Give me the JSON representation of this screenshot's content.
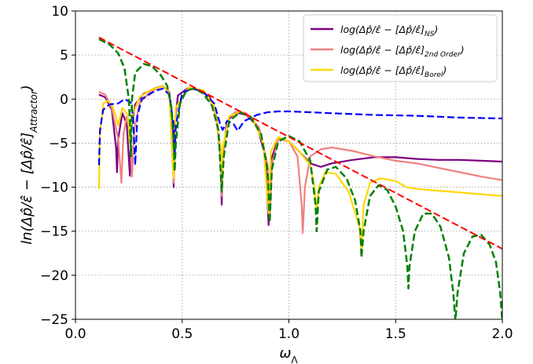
{
  "chart_data": {
    "type": "line",
    "xlabel": "ω_Λ",
    "ylabel": "ln(Δp̂/ε̂ − [Δp̂/ε̂]_Attractor)",
    "xlim": [
      0.0,
      2.0
    ],
    "ylim": [
      -25,
      10
    ],
    "xticks": [
      0.0,
      0.5,
      1.0,
      1.5,
      2.0
    ],
    "xtick_labels": [
      "0.0",
      "0.5",
      "1.0",
      "1.5",
      "2.0"
    ],
    "yticks": [
      10,
      5,
      0,
      -5,
      -10,
      -15,
      -20,
      -25
    ],
    "ytick_labels": [
      "10",
      "5",
      "0",
      "−5",
      "−10",
      "−15",
      "−20",
      "−25"
    ],
    "grid": true,
    "legend_position": "top-right",
    "legend": [
      {
        "label": "log(Δp̂/ε̂ − [Δp̂/ε̂]",
        "sub": "NS",
        "close": ")",
        "color": "#7b0080"
      },
      {
        "label": "log(Δp̂/ε̂ − [Δp̂/ε̂]",
        "sub": "2nd Order",
        "close": ")",
        "color": "#f08080"
      },
      {
        "label": "log(Δp̂/ε̂ − [Δp̂/ε̂]",
        "sub": "Borel",
        "close": ")",
        "color": "#ffd700"
      }
    ],
    "series": [
      {
        "key": "ns",
        "color": "#7b0080",
        "style": "solid",
        "width": 2.2,
        "points": [
          [
            0.11,
            0.5
          ],
          [
            0.14,
            0.2
          ],
          [
            0.17,
            -1.2
          ],
          [
            0.19,
            -5.5
          ],
          [
            0.195,
            -8.3
          ],
          [
            0.2,
            -4.5
          ],
          [
            0.22,
            -1.6
          ],
          [
            0.24,
            -2.8
          ],
          [
            0.255,
            -8.7
          ],
          [
            0.26,
            -3.5
          ],
          [
            0.28,
            -0.6
          ],
          [
            0.32,
            0.6
          ],
          [
            0.37,
            1.2
          ],
          [
            0.41,
            1.5
          ],
          [
            0.44,
            0.8
          ],
          [
            0.455,
            -3.0
          ],
          [
            0.46,
            -10.0
          ],
          [
            0.465,
            -3.0
          ],
          [
            0.48,
            0.4
          ],
          [
            0.53,
            1.3
          ],
          [
            0.58,
            1.0
          ],
          [
            0.63,
            0.2
          ],
          [
            0.66,
            -2.0
          ],
          [
            0.68,
            -6.5
          ],
          [
            0.685,
            -12.0
          ],
          [
            0.69,
            -6.5
          ],
          [
            0.71,
            -2.5
          ],
          [
            0.75,
            -1.5
          ],
          [
            0.8,
            -1.8
          ],
          [
            0.85,
            -3.0
          ],
          [
            0.89,
            -6.5
          ],
          [
            0.905,
            -14.3
          ],
          [
            0.915,
            -7.0
          ],
          [
            0.95,
            -4.5
          ],
          [
            1.0,
            -4.8
          ],
          [
            1.05,
            -6.0
          ],
          [
            1.1,
            -7.3
          ],
          [
            1.15,
            -7.7
          ],
          [
            1.2,
            -7.3
          ],
          [
            1.3,
            -6.9
          ],
          [
            1.4,
            -6.6
          ],
          [
            1.5,
            -6.6
          ],
          [
            1.6,
            -6.8
          ],
          [
            1.7,
            -6.9
          ],
          [
            1.8,
            -6.9
          ],
          [
            1.9,
            -7.0
          ],
          [
            2.0,
            -7.1
          ]
        ]
      },
      {
        "key": "second",
        "color": "#f08080",
        "style": "solid",
        "width": 2.2,
        "points": [
          [
            0.11,
            0.8
          ],
          [
            0.14,
            0.5
          ],
          [
            0.17,
            -1.0
          ],
          [
            0.2,
            -4.5
          ],
          [
            0.215,
            -9.5
          ],
          [
            0.225,
            -4.0
          ],
          [
            0.24,
            -2.0
          ],
          [
            0.255,
            -3.8
          ],
          [
            0.265,
            -8.8
          ],
          [
            0.275,
            -3.5
          ],
          [
            0.3,
            -0.5
          ],
          [
            0.35,
            0.8
          ],
          [
            0.41,
            1.5
          ],
          [
            0.44,
            0.8
          ],
          [
            0.46,
            -9.5
          ],
          [
            0.47,
            -1.0
          ],
          [
            0.53,
            1.3
          ],
          [
            0.6,
            0.8
          ],
          [
            0.65,
            -0.8
          ],
          [
            0.68,
            -6.0
          ],
          [
            0.685,
            -11.0
          ],
          [
            0.69,
            -6.0
          ],
          [
            0.72,
            -2.0
          ],
          [
            0.76,
            -1.4
          ],
          [
            0.8,
            -1.6
          ],
          [
            0.86,
            -3.2
          ],
          [
            0.9,
            -7.5
          ],
          [
            0.91,
            -13.6
          ],
          [
            0.92,
            -7.5
          ],
          [
            0.95,
            -4.5
          ],
          [
            1.0,
            -4.8
          ],
          [
            1.04,
            -6.5
          ],
          [
            1.06,
            -12.0
          ],
          [
            1.065,
            -15.2
          ],
          [
            1.075,
            -10.0
          ],
          [
            1.1,
            -6.5
          ],
          [
            1.15,
            -5.7
          ],
          [
            1.2,
            -5.5
          ],
          [
            1.3,
            -5.9
          ],
          [
            1.4,
            -6.5
          ],
          [
            1.5,
            -7.0
          ],
          [
            1.6,
            -7.3
          ],
          [
            1.7,
            -7.8
          ],
          [
            1.8,
            -8.3
          ],
          [
            1.9,
            -8.8
          ],
          [
            2.0,
            -9.2
          ]
        ]
      },
      {
        "key": "borel",
        "color": "#ffd700",
        "style": "solid",
        "width": 2.2,
        "points": [
          [
            0.11,
            -10.2
          ],
          [
            0.115,
            -4.0
          ],
          [
            0.13,
            -0.5
          ],
          [
            0.15,
            -0.2
          ],
          [
            0.17,
            -0.6
          ],
          [
            0.19,
            -2.0
          ],
          [
            0.2,
            -3.0
          ],
          [
            0.22,
            -1.0
          ],
          [
            0.245,
            -1.8
          ],
          [
            0.255,
            -5.0
          ],
          [
            0.265,
            -2.0
          ],
          [
            0.3,
            0.2
          ],
          [
            0.35,
            1.0
          ],
          [
            0.41,
            1.5
          ],
          [
            0.44,
            0.5
          ],
          [
            0.46,
            -9.0
          ],
          [
            0.47,
            -1.0
          ],
          [
            0.53,
            1.3
          ],
          [
            0.6,
            1.0
          ],
          [
            0.65,
            -0.8
          ],
          [
            0.68,
            -5.5
          ],
          [
            0.685,
            -9.5
          ],
          [
            0.69,
            -5.5
          ],
          [
            0.72,
            -2.0
          ],
          [
            0.77,
            -1.4
          ],
          [
            0.83,
            -2.2
          ],
          [
            0.88,
            -5.0
          ],
          [
            0.905,
            -13.0
          ],
          [
            0.915,
            -6.0
          ],
          [
            0.95,
            -4.3
          ],
          [
            1.0,
            -4.8
          ],
          [
            1.05,
            -6.0
          ],
          [
            1.1,
            -7.5
          ],
          [
            1.12,
            -10.0
          ],
          [
            1.13,
            -13.0
          ],
          [
            1.14,
            -10.0
          ],
          [
            1.17,
            -8.3
          ],
          [
            1.22,
            -8.5
          ],
          [
            1.28,
            -10.5
          ],
          [
            1.33,
            -14.5
          ],
          [
            1.34,
            -17.3
          ],
          [
            1.35,
            -12.0
          ],
          [
            1.38,
            -9.5
          ],
          [
            1.43,
            -9.0
          ],
          [
            1.5,
            -9.3
          ],
          [
            1.55,
            -10.0
          ],
          [
            1.6,
            -10.2
          ],
          [
            1.7,
            -10.4
          ],
          [
            1.8,
            -10.6
          ],
          [
            1.9,
            -10.8
          ],
          [
            2.0,
            -11.0
          ]
        ]
      },
      {
        "key": "attractor_reference",
        "color": "#0000ff",
        "style": "dashed",
        "width": 2.2,
        "points": [
          [
            0.11,
            -7.5
          ],
          [
            0.115,
            -3.5
          ],
          [
            0.13,
            -1.2
          ],
          [
            0.16,
            -0.6
          ],
          [
            0.2,
            -0.5
          ],
          [
            0.23,
            0.0
          ],
          [
            0.26,
            -0.4
          ],
          [
            0.27,
            -2.0
          ],
          [
            0.28,
            -7.5
          ],
          [
            0.29,
            -2.0
          ],
          [
            0.31,
            0.0
          ],
          [
            0.37,
            0.9
          ],
          [
            0.41,
            1.2
          ],
          [
            0.44,
            0.5
          ],
          [
            0.46,
            -3.0
          ],
          [
            0.465,
            -6.5
          ],
          [
            0.47,
            -3.0
          ],
          [
            0.5,
            0.7
          ],
          [
            0.55,
            1.2
          ],
          [
            0.6,
            0.8
          ],
          [
            0.65,
            -0.5
          ],
          [
            0.68,
            -3.0
          ],
          [
            0.69,
            -3.5
          ],
          [
            0.71,
            -2.5
          ],
          [
            0.74,
            -2.8
          ],
          [
            0.76,
            -3.6
          ],
          [
            0.79,
            -2.5
          ],
          [
            0.85,
            -1.8
          ],
          [
            0.9,
            -1.5
          ],
          [
            0.95,
            -1.4
          ],
          [
            1.0,
            -1.4
          ],
          [
            1.1,
            -1.5
          ],
          [
            1.2,
            -1.6
          ],
          [
            1.4,
            -1.8
          ],
          [
            1.6,
            -1.9
          ],
          [
            1.8,
            -2.1
          ],
          [
            2.0,
            -2.2
          ]
        ]
      },
      {
        "key": "green_dashed",
        "color": "#008000",
        "style": "dashed",
        "width": 2.5,
        "points": [
          [
            0.11,
            6.8
          ],
          [
            0.16,
            6.2
          ],
          [
            0.2,
            5.2
          ],
          [
            0.23,
            3.5
          ],
          [
            0.25,
            0.0
          ],
          [
            0.255,
            -2.5
          ],
          [
            0.26,
            -6.5
          ],
          [
            0.265,
            0.0
          ],
          [
            0.28,
            3.0
          ],
          [
            0.32,
            4.0
          ],
          [
            0.36,
            3.7
          ],
          [
            0.4,
            2.7
          ],
          [
            0.43,
            1.5
          ],
          [
            0.45,
            -1.0
          ],
          [
            0.46,
            -5.0
          ],
          [
            0.465,
            -8.2
          ],
          [
            0.47,
            -5.0
          ],
          [
            0.49,
            -0.5
          ],
          [
            0.52,
            1.0
          ],
          [
            0.56,
            1.2
          ],
          [
            0.6,
            0.6
          ],
          [
            0.64,
            -0.8
          ],
          [
            0.67,
            -3.5
          ],
          [
            0.685,
            -10.5
          ],
          [
            0.695,
            -6.5
          ],
          [
            0.72,
            -2.5
          ],
          [
            0.77,
            -1.5
          ],
          [
            0.82,
            -2.0
          ],
          [
            0.87,
            -4.0
          ],
          [
            0.9,
            -8.0
          ],
          [
            0.91,
            -14.0
          ],
          [
            0.92,
            -8.0
          ],
          [
            0.95,
            -4.8
          ],
          [
            1.0,
            -4.2
          ],
          [
            1.05,
            -4.8
          ],
          [
            1.1,
            -7.0
          ],
          [
            1.125,
            -12.0
          ],
          [
            1.13,
            -15.0
          ],
          [
            1.14,
            -10.5
          ],
          [
            1.18,
            -8.0
          ],
          [
            1.22,
            -7.7
          ],
          [
            1.27,
            -9.0
          ],
          [
            1.31,
            -11.5
          ],
          [
            1.335,
            -15.0
          ],
          [
            1.34,
            -18.0
          ],
          [
            1.35,
            -15.0
          ],
          [
            1.38,
            -11.0
          ],
          [
            1.42,
            -9.8
          ],
          [
            1.46,
            -10.3
          ],
          [
            1.5,
            -12.2
          ],
          [
            1.535,
            -15.0
          ],
          [
            1.555,
            -19.0
          ],
          [
            1.56,
            -21.5
          ],
          [
            1.565,
            -19.0
          ],
          [
            1.59,
            -15.0
          ],
          [
            1.63,
            -13.0
          ],
          [
            1.67,
            -13.0
          ],
          [
            1.71,
            -14.5
          ],
          [
            1.75,
            -18.0
          ],
          [
            1.77,
            -22.0
          ],
          [
            1.78,
            -25.2
          ],
          [
            1.79,
            -22.0
          ],
          [
            1.82,
            -17.5
          ],
          [
            1.86,
            -15.6
          ],
          [
            1.9,
            -15.4
          ],
          [
            1.94,
            -16.5
          ],
          [
            1.97,
            -18.5
          ],
          [
            1.99,
            -22.0
          ],
          [
            2.0,
            -25.2
          ]
        ]
      },
      {
        "key": "red_envelope",
        "color": "#ff0000",
        "style": "dashed",
        "width": 2.0,
        "points": [
          [
            0.11,
            7.0
          ],
          [
            2.0,
            -17.0
          ]
        ]
      }
    ]
  }
}
